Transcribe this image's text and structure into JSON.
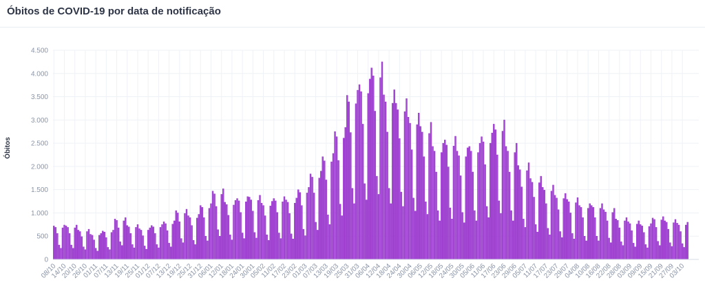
{
  "header": {
    "title": "Óbitos de COVID-19 por data de notificação"
  },
  "chart_data": {
    "type": "bar",
    "title": "Óbitos de COVID-19 por data de notificação",
    "xlabel": "",
    "ylabel": "Óbitos",
    "ylim": [
      0,
      4500
    ],
    "y_ticks": [
      0,
      500,
      1000,
      1500,
      2000,
      2500,
      3000,
      3500,
      4000,
      4500
    ],
    "y_tick_labels": [
      "0",
      "500",
      "1.000",
      "1.500",
      "2.000",
      "2.500",
      "3.000",
      "3.500",
      "4.000",
      "4.500"
    ],
    "x_tick_every": 6,
    "x_tick_labels": [
      "08/10",
      "14/10",
      "20/10",
      "26/10",
      "01/11",
      "07/11",
      "13/11",
      "19/11",
      "25/11",
      "01/12",
      "07/12",
      "13/12",
      "19/12",
      "25/12",
      "31/12",
      "06/01",
      "12/01",
      "18/01",
      "24/01",
      "30/01",
      "05/02",
      "11/02",
      "17/02",
      "23/02",
      "01/03",
      "07/03",
      "13/03",
      "19/03",
      "25/03",
      "31/03",
      "06/04",
      "12/04",
      "18/04",
      "24/04",
      "30/04",
      "06/05",
      "12/05",
      "18/05",
      "24/05",
      "30/05",
      "05/06",
      "11/06",
      "17/06",
      "23/06",
      "29/06",
      "05/07",
      "11/07",
      "17/07",
      "23/07",
      "29/07",
      "04/08",
      "10/08",
      "16/08",
      "22/08",
      "28/08",
      "03/09",
      "09/09",
      "15/09",
      "21/09",
      "27/09",
      "03/10"
    ],
    "grid": true,
    "colors": {
      "bar": "#a54bd6",
      "bar_edge": "#8a1fc2",
      "grid": "#eef1f6"
    },
    "values": [
      720,
      690,
      560,
      310,
      240,
      680,
      740,
      720,
      690,
      560,
      310,
      240,
      680,
      740,
      630,
      600,
      490,
      270,
      210,
      600,
      650,
      540,
      520,
      420,
      240,
      180,
      520,
      560,
      610,
      590,
      470,
      260,
      210,
      580,
      630,
      870,
      840,
      680,
      380,
      300,
      830,
      900,
      730,
      700,
      560,
      320,
      250,
      690,
      750,
      660,
      630,
      510,
      290,
      220,
      630,
      680,
      730,
      700,
      560,
      320,
      250,
      690,
      750,
      810,
      770,
      620,
      350,
      270,
      760,
      830,
      1050,
      1000,
      810,
      450,
      360,
      990,
      1080,
      940,
      900,
      730,
      410,
      320,
      890,
      970,
      1160,
      1120,
      900,
      500,
      400,
      1100,
      1200,
      1470,
      1410,
      1140,
      640,
      500,
      1400,
      1520,
      1230,
      1180,
      950,
      530,
      420,
      1170,
      1270,
      1310,
      1260,
      1010,
      570,
      450,
      1240,
      1350,
      1340,
      1280,
      1040,
      580,
      460,
      1270,
      1380,
      1210,
      1160,
      940,
      530,
      410,
      1150,
      1250,
      1310,
      1260,
      1010,
      570,
      450,
      1240,
      1350,
      1280,
      1230,
      990,
      550,
      440,
      1210,
      1320,
      1500,
      1440,
      1160,
      650,
      510,
      1430,
      1550,
      1840,
      1770,
      1430,
      800,
      630,
      1750,
      1900,
      2210,
      2120,
      1710,
      960,
      750,
      2100,
      2280,
      2750,
      2640,
      2130,
      1190,
      940,
      2610,
      2840,
      3530,
      3390,
      2730,
      1530,
      1200,
      3350,
      3640,
      3760,
      3610,
      2910,
      1630,
      1280,
      3570,
      3880,
      4120,
      3950,
      3190,
      1790,
      1400,
      3910,
      4250,
      3540,
      3390,
      2740,
      1530,
      1200,
      3360,
      3650,
      3360,
      3220,
      2600,
      1450,
      1140,
      3180,
      3460,
      3060,
      2930,
      2360,
      1320,
      1040,
      2900,
      3150,
      2860,
      2740,
      2210,
      1240,
      970,
      2710,
      2950,
      2430,
      2330,
      1880,
      1050,
      830,
      2300,
      2500,
      2570,
      2460,
      1990,
      1110,
      870,
      2440,
      2650,
      2330,
      2230,
      1800,
      1010,
      790,
      2210,
      2400,
      2430,
      2330,
      1880,
      1050,
      830,
      2300,
      2500,
      2640,
      2530,
      2040,
      1140,
      900,
      2500,
      2720,
      2910,
      2790,
      2250,
      1260,
      990,
      2760,
      3000,
      2430,
      2330,
      1880,
      1050,
      830,
      2300,
      2500,
      2020,
      1930,
      1560,
      870,
      690,
      1910,
      2080,
      1740,
      1660,
      1340,
      750,
      590,
      1650,
      1790,
      1550,
      1490,
      1200,
      670,
      530,
      1470,
      1600,
      1380,
      1320,
      1070,
      600,
      470,
      1310,
      1420,
      1290,
      1240,
      1000,
      560,
      440,
      1220,
      1330,
      1160,
      1120,
      900,
      500,
      400,
      1100,
      1200,
      1160,
      1120,
      900,
      500,
      400,
      1100,
      1200,
      1070,
      1020,
      830,
      460,
      360,
      1010,
      1100,
      870,
      840,
      680,
      380,
      300,
      830,
      900,
      810,
      770,
      620,
      350,
      270,
      760,
      830,
      750,
      720,
      580,
      320,
      250,
      710,
      770,
      890,
      860,
      690,
      390,
      300,
      850,
      920,
      830,
      800,
      650,
      360,
      280,
      790,
      860,
      780,
      740,
      600,
      340,
      260,
      740,
      800
    ]
  }
}
